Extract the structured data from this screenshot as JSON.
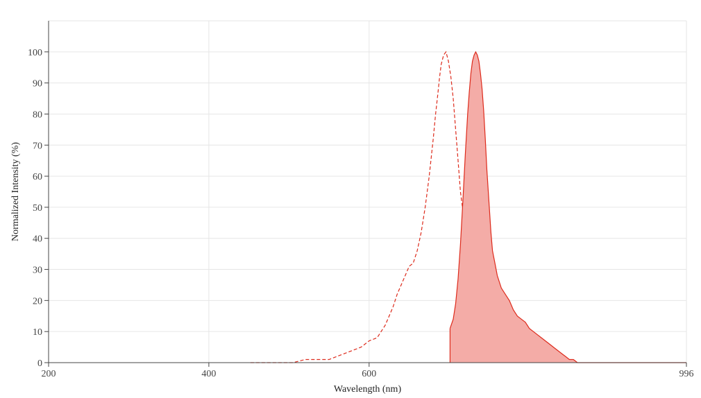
{
  "chart_data": {
    "type": "area",
    "xlabel": "Wavelength (nm)",
    "ylabel": "Normalized Intensity (%)",
    "xlim": [
      200,
      996
    ],
    "ylim": [
      0,
      110
    ],
    "x_ticks": [
      200,
      400,
      600,
      996
    ],
    "y_ticks": [
      0,
      10,
      20,
      30,
      40,
      50,
      60,
      70,
      80,
      90,
      100
    ],
    "grid": true,
    "legend": "none",
    "colors": {
      "accent": "#dd2a1b",
      "fill": "#f4aca7"
    },
    "series": [
      {
        "style": "dashed-line",
        "x": [
          452,
          470,
          490,
          505,
          520,
          530,
          550,
          560,
          570,
          580,
          590,
          600,
          610,
          615,
          620,
          625,
          630,
          635,
          640,
          645,
          650,
          655,
          660,
          665,
          670,
          675,
          680,
          683,
          686,
          688,
          690,
          693,
          696,
          699,
          702,
          705,
          708,
          711,
          714,
          718,
          721,
          724,
          727,
          731,
          735,
          738,
          742,
          744
        ],
        "y": [
          0,
          0,
          0,
          0,
          1,
          1,
          1,
          2,
          3,
          4,
          5,
          7,
          8,
          10,
          12,
          15,
          18,
          22,
          25,
          28,
          31,
          32,
          36,
          42,
          50,
          60,
          72,
          80,
          87,
          92,
          96,
          99,
          100,
          97,
          92,
          85,
          75,
          65,
          55,
          47,
          40,
          34,
          28,
          23,
          20,
          18,
          19,
          20
        ]
      },
      {
        "style": "filled-area",
        "x": [
          701,
          705,
          708,
          711,
          714,
          717,
          720,
          723,
          725,
          727,
          729,
          731,
          733,
          735,
          737,
          739,
          741,
          743,
          745,
          747,
          750,
          752,
          754,
          757,
          760,
          765,
          770,
          775,
          780,
          785,
          790,
          795,
          800,
          805,
          810,
          815,
          820,
          825,
          830,
          835,
          840,
          845,
          850,
          855,
          860,
          870,
          880,
          900,
          950,
          996
        ],
        "y": [
          11,
          14,
          19,
          27,
          38,
          52,
          67,
          80,
          87,
          93,
          97,
          99,
          100,
          99,
          97,
          93,
          88,
          81,
          72,
          62,
          50,
          42,
          36,
          32,
          28,
          24,
          22,
          20,
          17,
          15,
          14,
          13,
          11,
          10,
          9,
          8,
          7,
          6,
          5,
          4,
          3,
          2,
          1,
          1,
          0,
          0,
          0,
          0,
          0,
          0
        ]
      }
    ]
  }
}
